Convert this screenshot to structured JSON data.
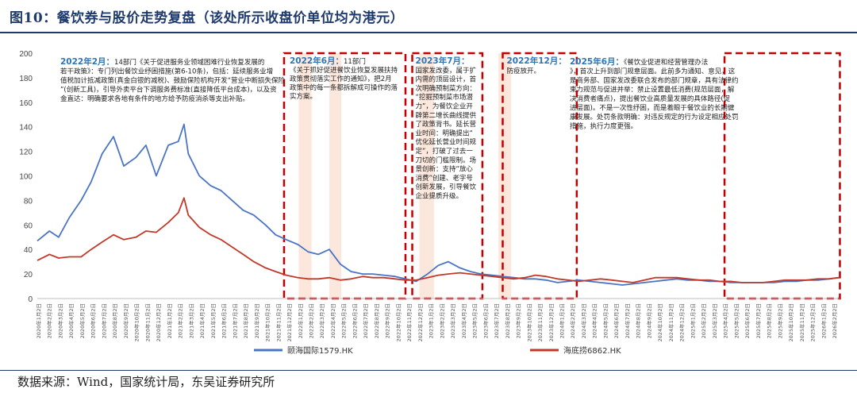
{
  "figure": {
    "title": "图10：餐饮券与股价走势复盘（该处所示收盘价单位均为港元）",
    "source": "数据来源：Wind，国家统计局，东吴证券研究所"
  },
  "chart_data": {
    "type": "line",
    "ylim": [
      0,
      200
    ],
    "yticks": [
      "0",
      "20",
      "40",
      "60",
      "80",
      "100",
      "120",
      "140",
      "160",
      "180",
      "200"
    ],
    "grid": false,
    "legend_position": "bottom",
    "series": [
      {
        "name": "颐海国际1579.HK",
        "color": "#4a74c4",
        "x": [
          "2020-01-02",
          "2020-02-05",
          "2020-03-02",
          "2020-04-01",
          "2020-05-04",
          "2020-06-01",
          "2020-07-02",
          "2020-08-03",
          "2020-09-01",
          "2020-10-05",
          "2020-11-02",
          "2020-12-01",
          "2021-01-04",
          "2021-02-01",
          "2021-02-17",
          "2021-03-01",
          "2021-04-01",
          "2021-05-03",
          "2021-06-01",
          "2021-07-02",
          "2021-08-02",
          "2021-09-01",
          "2021-10-04",
          "2021-11-01",
          "2021-12-01",
          "2022-01-03",
          "2022-02-01",
          "2022-03-01",
          "2022-04-01",
          "2022-05-02",
          "2022-06-01",
          "2022-07-04",
          "2022-08-01",
          "2022-09-01",
          "2022-10-03",
          "2022-11-01",
          "2022-12-01",
          "2023-01-02",
          "2023-02-01",
          "2023-03-01",
          "2023-04-03",
          "2023-05-02",
          "2023-06-01",
          "2023-07-03",
          "2023-08-01",
          "2023-09-01",
          "2023-10-02",
          "2023-11-01",
          "2023-12-01",
          "2024-01-02",
          "2024-02-01",
          "2024-03-01",
          "2024-04-02",
          "2024-05-02",
          "2024-06-03",
          "2024-07-02",
          "2024-08-01",
          "2024-09-02",
          "2024-10-02",
          "2024-11-01",
          "2024-12-02",
          "2025-01-02",
          "2025-02-03",
          "2025-03-03",
          "2025-04-01",
          "2025-05-02",
          "2025-06-02",
          "2025-07-02",
          "2025-08-01",
          "2025-09-01",
          "2025-10-02",
          "2025-11-03",
          "2025-12-01",
          "2026-01-02",
          "2026-02-02",
          "2026-03-02"
        ],
        "values": [
          47,
          55,
          50,
          66,
          80,
          95,
          118,
          132,
          108,
          115,
          125,
          100,
          125,
          128,
          142,
          118,
          100,
          92,
          88,
          80,
          72,
          68,
          60,
          52,
          48,
          44,
          38,
          36,
          40,
          28,
          22,
          20,
          20,
          19,
          18,
          16,
          14,
          20,
          27,
          30,
          25,
          22,
          20,
          19,
          18,
          17,
          16,
          16,
          15,
          13,
          14,
          15,
          14,
          13,
          12,
          11,
          12,
          13,
          14,
          15,
          16,
          15,
          15,
          14,
          14,
          13,
          13,
          13,
          13,
          13,
          14,
          14,
          15,
          15,
          16,
          17
        ]
      },
      {
        "name": "海底捞6862.HK",
        "color": "#c0392b",
        "x": [
          "2020-01-02",
          "2020-02-05",
          "2020-03-02",
          "2020-04-01",
          "2020-05-04",
          "2020-06-01",
          "2020-07-02",
          "2020-08-03",
          "2020-09-01",
          "2020-10-05",
          "2020-11-02",
          "2020-12-01",
          "2021-01-04",
          "2021-02-01",
          "2021-02-17",
          "2021-03-01",
          "2021-04-01",
          "2021-05-03",
          "2021-06-01",
          "2021-07-02",
          "2021-08-02",
          "2021-09-01",
          "2021-10-04",
          "2021-11-01",
          "2021-12-01",
          "2022-01-03",
          "2022-02-01",
          "2022-03-01",
          "2022-04-01",
          "2022-05-02",
          "2022-06-01",
          "2022-07-04",
          "2022-08-01",
          "2022-09-01",
          "2022-10-03",
          "2022-11-01",
          "2022-12-01",
          "2023-01-02",
          "2023-02-01",
          "2023-03-01",
          "2023-04-03",
          "2023-05-02",
          "2023-06-01",
          "2023-07-03",
          "2023-08-01",
          "2023-09-01",
          "2023-10-02",
          "2023-11-01",
          "2023-12-01",
          "2024-01-02",
          "2024-02-01",
          "2024-03-01",
          "2024-04-02",
          "2024-05-02",
          "2024-06-03",
          "2024-07-02",
          "2024-08-01",
          "2024-09-02",
          "2024-10-02",
          "2024-11-01",
          "2024-12-02",
          "2025-01-02",
          "2025-02-03",
          "2025-03-03",
          "2025-04-01",
          "2025-05-02",
          "2025-06-02",
          "2025-07-02",
          "2025-08-01",
          "2025-09-01",
          "2025-10-02",
          "2025-11-03",
          "2025-12-01",
          "2026-01-02",
          "2026-02-02",
          "2026-03-02"
        ],
        "values": [
          31,
          36,
          33,
          34,
          34,
          40,
          46,
          52,
          48,
          50,
          55,
          54,
          62,
          70,
          82,
          68,
          58,
          52,
          48,
          42,
          36,
          30,
          25,
          22,
          19,
          17,
          16,
          16,
          17,
          15,
          16,
          18,
          17,
          17,
          16,
          15,
          15,
          17,
          19,
          20,
          21,
          20,
          19,
          18,
          17,
          16,
          17,
          19,
          18,
          16,
          15,
          14,
          15,
          16,
          15,
          14,
          13,
          15,
          17,
          17,
          17,
          16,
          15,
          15,
          14,
          14,
          13,
          13,
          13,
          14,
          15,
          15,
          15,
          16,
          16,
          17
        ]
      }
    ],
    "x_tick_labels": [
      "2020年1月2日",
      "2020年2月2日",
      "2020年3月2日",
      "2020年4月2日",
      "2020年5月2日",
      "2020年6月2日",
      "2020年7月2日",
      "2020年8月2日",
      "2020年9月2日",
      "2020年10月2日",
      "2020年11月2日",
      "2020年12月2日",
      "2021年1月2日",
      "2021年2月2日",
      "2021年3月2日",
      "2021年4月2日",
      "2021年5月2日",
      "2021年6月2日",
      "2021年7月2日",
      "2021年8月2日",
      "2021年9月2日",
      "2021年10月2日",
      "2021年11月2日",
      "2021年12月2日",
      "2022年1月2日",
      "2022年2月2日",
      "2022年3月2日",
      "2022年4月2日",
      "2022年5月2日",
      "2022年6月2日",
      "2022年7月2日",
      "2022年8月2日",
      "2022年9月2日",
      "2022年10月2日",
      "2022年11月2日",
      "2022年12月2日",
      "2023年1月2日",
      "2023年2月2日",
      "2023年3月2日",
      "2023年4月2日",
      "2023年5月2日",
      "2023年6月2日",
      "2023年7月2日",
      "2023年8月2日",
      "2023年9月2日",
      "2023年10月2日",
      "2023年11月2日",
      "2023年12月2日",
      "2024年1月2日",
      "2024年2月2日",
      "2024年3月2日",
      "2024年4月2日",
      "2024年5月2日",
      "2024年6月2日",
      "2024年7月2日",
      "2024年8月2日",
      "2024年9月2日",
      "2024年10月2日",
      "2024年11月2日",
      "2024年12月2日",
      "2025年1月2日",
      "2025年2月2日",
      "2025年3月2日",
      "2025年4月2日",
      "2025年5月2日",
      "2025年6月2日",
      "2025年7月2日",
      "2025年8月2日",
      "2025年9月2日",
      "2025年10月2日",
      "2025年11月2日",
      "2025年12月2日",
      "2026年1月2日",
      "2026年2月2日"
    ],
    "highlight_bands": [
      {
        "start": "2022-01-05",
        "end": "2022-02-10"
      },
      {
        "start": "2022-04-01",
        "end": "2022-05-05"
      },
      {
        "start": "2022-12-10",
        "end": "2023-01-20"
      },
      {
        "start": "2023-07-20",
        "end": "2023-08-25"
      }
    ],
    "annotation_boxes": [
      {
        "start": "2021-11-25",
        "end": "2022-11-01",
        "label": "2022年6月：",
        "text": "11部门《关于抓好促进餐饮业恢复发展扶持政策贯彻落实工作的通知》，把2月政策中的每一条都拆解成可操作的落实方案。"
      },
      {
        "start": "2022-11-20",
        "end": "2023-06-05",
        "label": "2023年7月：",
        "text": "国家发改委，属于扩内需的顶层设计，首次明确预制菜方向：“挖掘预制菜市场潜力”，为餐饮企业开辟第二增长曲线提供了政策背书。延长营业时间：明确提出“优化延长营业时间规定”，打破了过去一刀切的门槛限制。场景创新：支持“放心消费”创建、老字号创新发展，引导餐饮企业提质升级。"
      },
      {
        "start": "2023-08-01",
        "end": "2024-02-25",
        "label": "2022年12月：",
        "text": "防疫放开。"
      },
      {
        "start": "2025-04-15",
        "end": "2026-03-05",
        "label": "",
        "text": ""
      }
    ],
    "free_annotations": [
      {
        "label": "2022年2月：",
        "text": "14部门《关于促进服务业领域困难行业恢复发展的若干政策》：专门列出餐饮业纾困措施(第6-10条)，包括：延续服务业增值税加计抵减政策(真金白银的减税)、鼓励保险机构开发“营业中断损失保险”(创新工具)，引导外卖平台下调服务费标准(直接降低平台成本)，以及资金直达：明确要求各地有条件的地方给予防疫消杀等支出补贴。"
      },
      {
        "label": "2025年6月：",
        "text": "《餐饮业促进和经营管理办法》，首次上升到部门规章层面。此前多为通知、意见，这是商务部、国家发改委联合发布的部门规章，具有法律约束力规范与促进并举：禁止设置最低消费(规范层面，解决消费者痛点)，提出餐饮业高质量发展的具体路径(促进层面)。不是一次性纾困，而是着眼于餐饮业的长期健康发展。处罚条款明确：对违反规定的行为设定相应处罚措施，执行力度更强。"
      }
    ]
  }
}
